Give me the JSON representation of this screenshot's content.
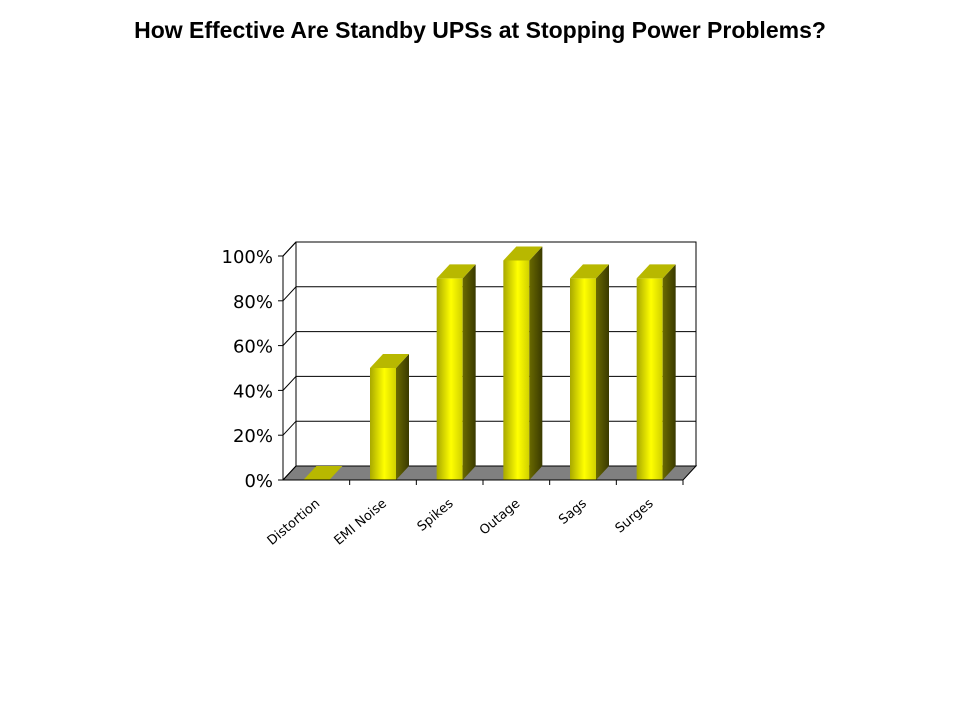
{
  "chart_data": {
    "type": "bar",
    "title": "How Effective Are Standby UPSs at Stopping Power Problems?",
    "categories": [
      "Distortion",
      "EMI Noise",
      "Spikes",
      "Outage",
      "Sags",
      "Surges"
    ],
    "values": [
      0,
      50,
      90,
      98,
      90,
      90
    ],
    "color": "#ffff00",
    "ylim": [
      0,
      100
    ],
    "yticks": [
      {
        "value": 0,
        "label": "0%"
      },
      {
        "value": 20,
        "label": "20%"
      },
      {
        "value": 40,
        "label": "40%"
      },
      {
        "value": 60,
        "label": "60%"
      },
      {
        "value": 80,
        "label": "80%"
      },
      {
        "value": 100,
        "label": "100%"
      }
    ],
    "grid": true
  }
}
